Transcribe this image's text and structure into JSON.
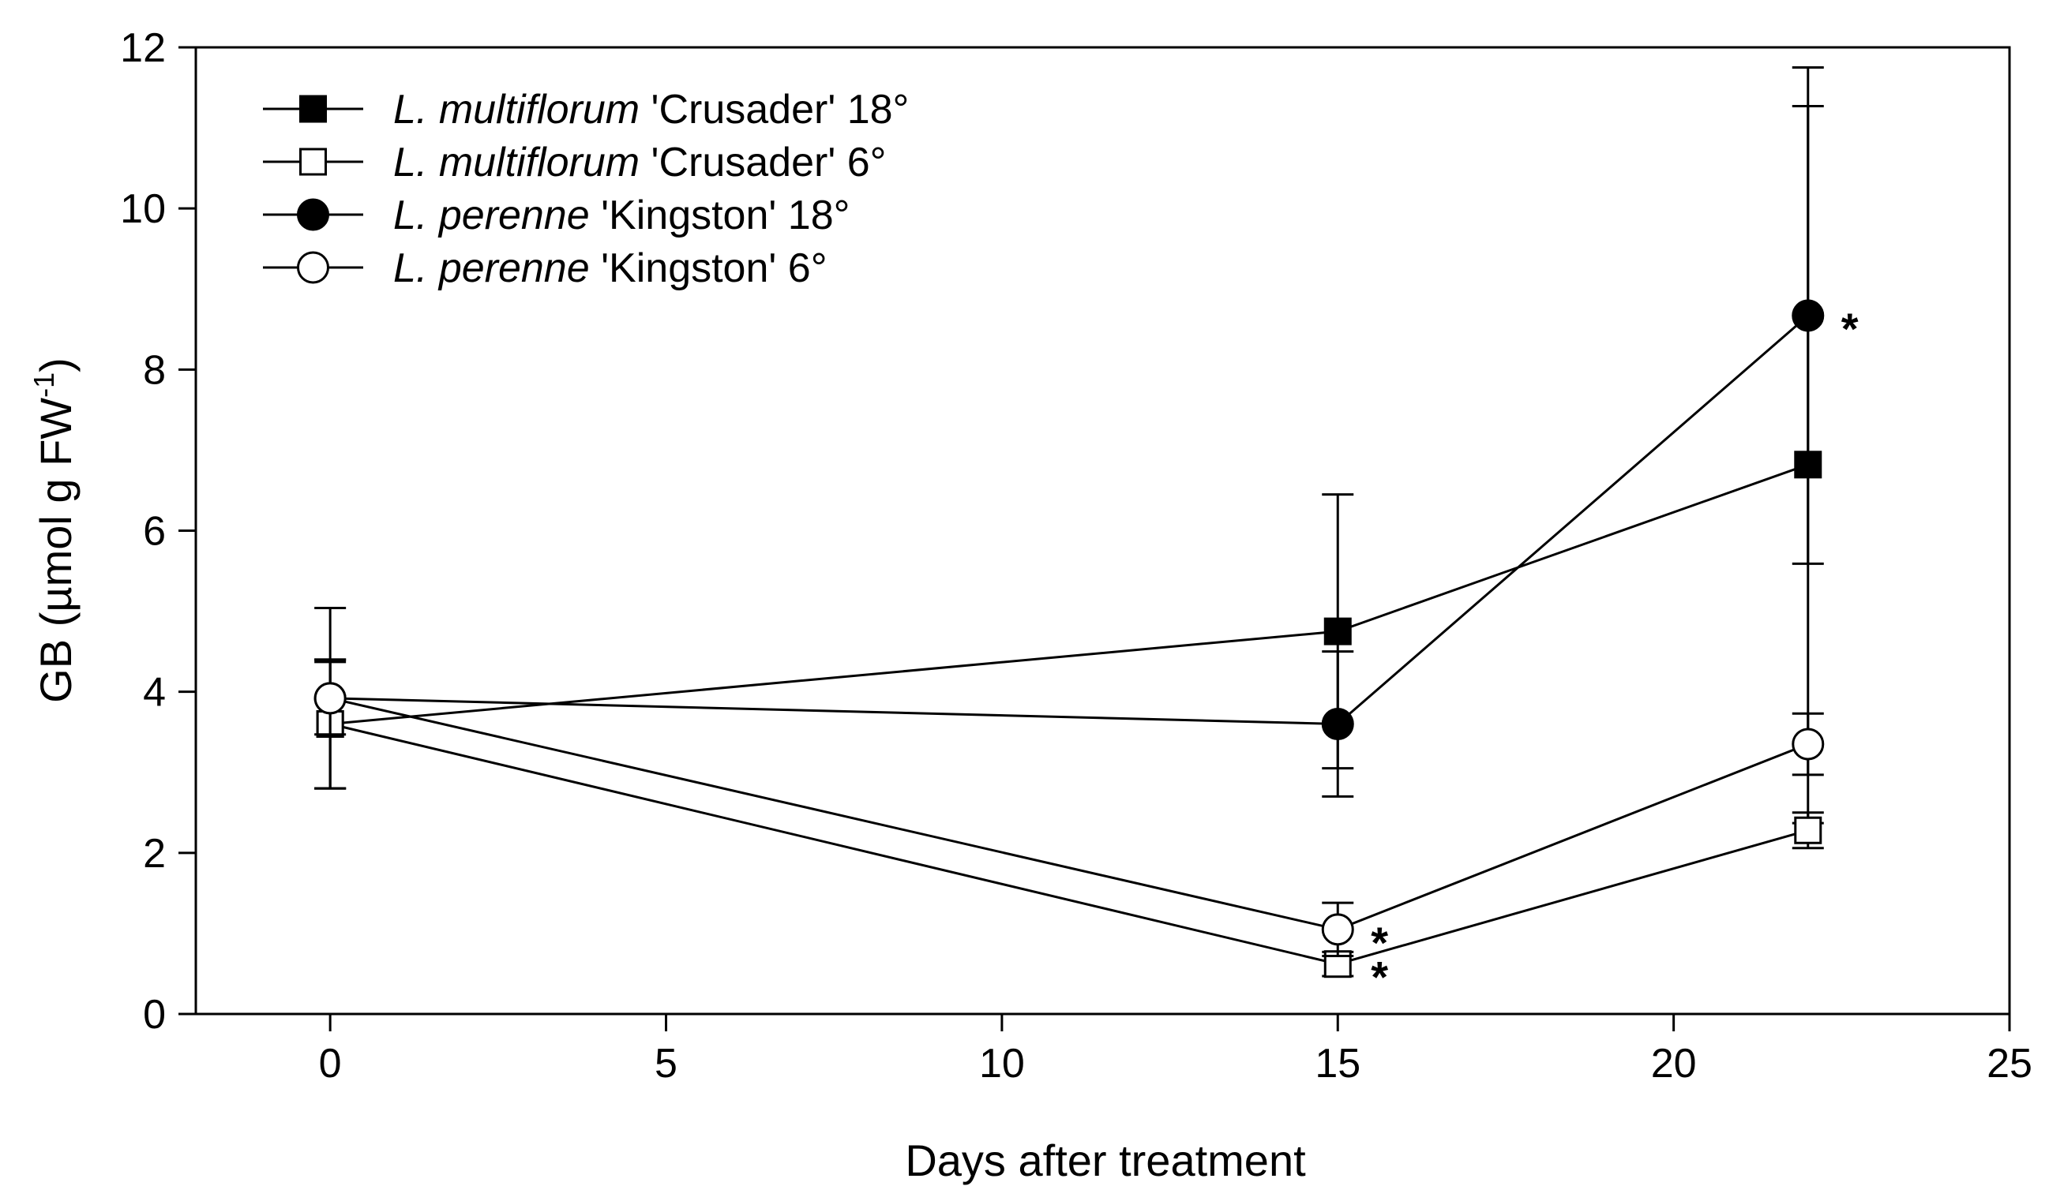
{
  "chart_data": {
    "type": "line",
    "title": "",
    "xlabel": "Days after treatment",
    "ylabel": "GB (µmol g FW",
    "ylabel_sup": "-1",
    "ylabel_close": ")",
    "xlim": [
      -2,
      25
    ],
    "ylim": [
      0,
      12
    ],
    "xticks": [
      0,
      5,
      10,
      15,
      20,
      25
    ],
    "yticks": [
      0,
      2,
      4,
      6,
      8,
      10,
      12
    ],
    "grid": false,
    "legend_position": "top-left",
    "series": [
      {
        "name": "L. multiflorum 'Crusader' 18°",
        "species": "L. multiflorum",
        "label": " 'Crusader' 18°",
        "marker": "square",
        "filled": true,
        "x": [
          0,
          15,
          22
        ],
        "y": [
          3.6,
          4.75,
          6.82
        ],
        "err": [
          0.8,
          1.7,
          4.45
        ],
        "significant": [
          false,
          false,
          false
        ]
      },
      {
        "name": "L. multiflorum 'Crusader' 6°",
        "species": "L. multiflorum",
        "label": " 'Crusader' 6°",
        "marker": "square",
        "filled": false,
        "x": [
          0,
          15,
          22
        ],
        "y": [
          3.6,
          0.62,
          2.28
        ],
        "err": [
          0.8,
          0.15,
          0.22
        ],
        "significant": [
          false,
          true,
          false
        ]
      },
      {
        "name": "L. perenne 'Kingston' 18°",
        "species": "L. perenne",
        "label": " 'Kingston' 18°",
        "marker": "circle",
        "filled": true,
        "x": [
          0,
          15,
          22
        ],
        "y": [
          3.92,
          3.6,
          8.67
        ],
        "err": [
          1.12,
          0.9,
          3.08
        ],
        "significant": [
          false,
          false,
          true
        ]
      },
      {
        "name": "L. perenne 'Kingston' 6°",
        "species": "L. perenne",
        "label": " 'Kingston' 6°",
        "marker": "circle",
        "filled": false,
        "x": [
          0,
          15,
          22
        ],
        "y": [
          3.92,
          1.05,
          3.35
        ],
        "err": [
          0.45,
          0.33,
          0.38
        ],
        "significant": [
          false,
          true,
          false
        ]
      }
    ],
    "significance_marker": "*"
  }
}
